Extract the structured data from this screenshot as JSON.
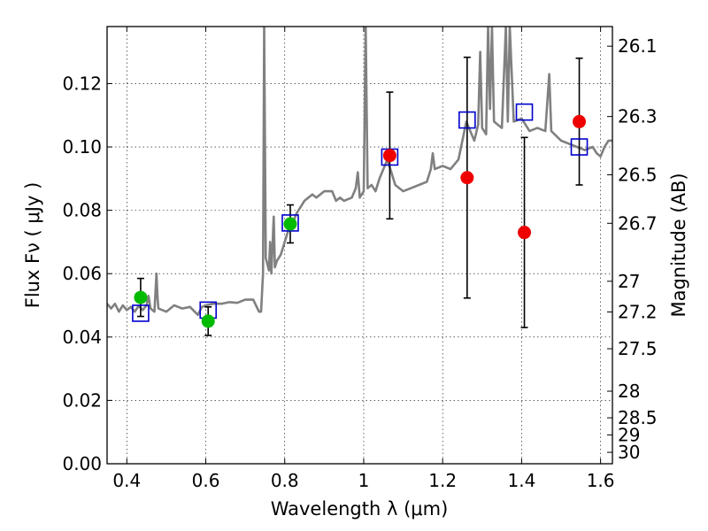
{
  "chart_data": {
    "type": "scatter",
    "title": "",
    "xlabel": "Wavelength  λ (μm)",
    "ylabel": "Flux  Fν  ( μJy )",
    "y2label": "Magnitude (AB)",
    "xlim": [
      0.35,
      1.63
    ],
    "ylim": [
      0.0,
      0.138
    ],
    "x_ticks": [
      0.4,
      0.6,
      0.8,
      1.0,
      1.2,
      1.4,
      1.6
    ],
    "x_tick_labels": [
      "0.4",
      "0.6",
      "0.8",
      "1",
      "1.2",
      "1.4",
      "1.6"
    ],
    "y_ticks": [
      0.0,
      0.02,
      0.04,
      0.06,
      0.08,
      0.1,
      0.12
    ],
    "y_tick_labels": [
      "0.00",
      "0.02",
      "0.04",
      "0.06",
      "0.08",
      "0.10",
      "0.12"
    ],
    "right_ticks": [
      {
        "label": "26.1",
        "flux": 0.1318
      },
      {
        "label": "26.3",
        "flux": 0.1096
      },
      {
        "label": "26.5",
        "flux": 0.0912
      },
      {
        "label": "26.7",
        "flux": 0.0759
      },
      {
        "label": "27",
        "flux": 0.0576
      },
      {
        "label": "27.2",
        "flux": 0.0479
      },
      {
        "label": "27.5",
        "flux": 0.0363
      },
      {
        "label": "28",
        "flux": 0.0229
      },
      {
        "label": "28.5",
        "flux": 0.0145
      },
      {
        "label": "29",
        "flux": 0.0091
      },
      {
        "label": "30",
        "flux": 0.0036
      }
    ],
    "grid": true,
    "colors": {
      "sed": "#808080",
      "green": "#00bb00",
      "red": "#ee0000",
      "model": "#0000cc"
    },
    "series": [
      {
        "kind": "green-points",
        "points": [
          {
            "x": 0.435,
            "y": 0.0525,
            "err": 0.006
          },
          {
            "x": 0.606,
            "y": 0.045,
            "err": 0.0045
          },
          {
            "x": 0.814,
            "y": 0.0757,
            "err": 0.006
          }
        ]
      },
      {
        "kind": "red-points",
        "points": [
          {
            "x": 1.066,
            "y": 0.0973,
            "err": 0.02
          },
          {
            "x": 1.262,
            "y": 0.0903,
            "err": 0.038
          },
          {
            "x": 1.407,
            "y": 0.073,
            "err": 0.03
          },
          {
            "x": 1.546,
            "y": 0.108,
            "err": 0.02
          }
        ]
      },
      {
        "kind": "model-squares",
        "points": [
          {
            "x": 0.435,
            "y": 0.0475
          },
          {
            "x": 0.606,
            "y": 0.0485
          },
          {
            "x": 0.814,
            "y": 0.076
          },
          {
            "x": 1.066,
            "y": 0.0968
          },
          {
            "x": 1.262,
            "y": 0.1085
          },
          {
            "x": 1.407,
            "y": 0.111
          },
          {
            "x": 1.546,
            "y": 0.1
          }
        ]
      },
      {
        "kind": "sed-curve",
        "points": [
          [
            0.35,
            0.0505
          ],
          [
            0.36,
            0.049
          ],
          [
            0.37,
            0.0505
          ],
          [
            0.38,
            0.048
          ],
          [
            0.39,
            0.05
          ],
          [
            0.4,
            0.0485
          ],
          [
            0.41,
            0.0495
          ],
          [
            0.42,
            0.048
          ],
          [
            0.43,
            0.0498
          ],
          [
            0.44,
            0.0485
          ],
          [
            0.45,
            0.05
          ],
          [
            0.455,
            0.053
          ],
          [
            0.46,
            0.049
          ],
          [
            0.47,
            0.048
          ],
          [
            0.475,
            0.06
          ],
          [
            0.478,
            0.052
          ],
          [
            0.48,
            0.049
          ],
          [
            0.5,
            0.048
          ],
          [
            0.52,
            0.05
          ],
          [
            0.54,
            0.049
          ],
          [
            0.56,
            0.0495
          ],
          [
            0.58,
            0.047
          ],
          [
            0.59,
            0.0495
          ],
          [
            0.6,
            0.05
          ],
          [
            0.62,
            0.0505
          ],
          [
            0.64,
            0.0505
          ],
          [
            0.66,
            0.051
          ],
          [
            0.68,
            0.0508
          ],
          [
            0.7,
            0.0518
          ],
          [
            0.72,
            0.0518
          ],
          [
            0.735,
            0.048
          ],
          [
            0.74,
            0.048
          ],
          [
            0.745,
            0.06
          ],
          [
            0.748,
            0.138
          ],
          [
            0.752,
            0.065
          ],
          [
            0.76,
            0.061
          ],
          [
            0.763,
            0.07
          ],
          [
            0.766,
            0.06
          ],
          [
            0.772,
            0.078
          ],
          [
            0.775,
            0.062
          ],
          [
            0.78,
            0.064
          ],
          [
            0.79,
            0.066
          ],
          [
            0.8,
            0.07
          ],
          [
            0.81,
            0.074
          ],
          [
            0.82,
            0.076
          ],
          [
            0.83,
            0.079
          ],
          [
            0.85,
            0.083
          ],
          [
            0.87,
            0.085
          ],
          [
            0.88,
            0.084
          ],
          [
            0.9,
            0.086
          ],
          [
            0.92,
            0.086
          ],
          [
            0.93,
            0.083
          ],
          [
            0.94,
            0.084
          ],
          [
            0.95,
            0.083
          ],
          [
            0.97,
            0.084
          ],
          [
            0.98,
            0.087
          ],
          [
            0.985,
            0.092
          ],
          [
            0.99,
            0.084
          ],
          [
            1.0,
            0.086
          ],
          [
            1.005,
            0.138
          ],
          [
            1.01,
            0.087
          ],
          [
            1.02,
            0.088
          ],
          [
            1.03,
            0.086
          ],
          [
            1.04,
            0.09
          ],
          [
            1.06,
            0.096
          ],
          [
            1.07,
            0.092
          ],
          [
            1.08,
            0.088
          ],
          [
            1.1,
            0.086
          ],
          [
            1.12,
            0.087
          ],
          [
            1.14,
            0.088
          ],
          [
            1.16,
            0.089
          ],
          [
            1.17,
            0.093
          ],
          [
            1.175,
            0.098
          ],
          [
            1.18,
            0.093
          ],
          [
            1.2,
            0.094
          ],
          [
            1.22,
            0.093
          ],
          [
            1.24,
            0.096
          ],
          [
            1.25,
            0.102
          ],
          [
            1.26,
            0.108
          ],
          [
            1.27,
            0.105
          ],
          [
            1.28,
            0.102
          ],
          [
            1.29,
            0.107
          ],
          [
            1.295,
            0.13
          ],
          [
            1.3,
            0.106
          ],
          [
            1.31,
            0.104
          ],
          [
            1.315,
            0.138
          ],
          [
            1.32,
            0.112
          ],
          [
            1.325,
            0.138
          ],
          [
            1.33,
            0.108
          ],
          [
            1.35,
            0.106
          ],
          [
            1.36,
            0.138
          ],
          [
            1.365,
            0.108
          ],
          [
            1.37,
            0.138
          ],
          [
            1.38,
            0.108
          ],
          [
            1.4,
            0.109
          ],
          [
            1.42,
            0.105
          ],
          [
            1.44,
            0.106
          ],
          [
            1.46,
            0.105
          ],
          [
            1.47,
            0.123
          ],
          [
            1.475,
            0.105
          ],
          [
            1.5,
            0.102
          ],
          [
            1.52,
            0.101
          ],
          [
            1.54,
            0.1
          ],
          [
            1.56,
            0.099
          ],
          [
            1.58,
            0.1
          ],
          [
            1.59,
            0.098
          ],
          [
            1.6,
            0.097
          ],
          [
            1.61,
            0.1
          ],
          [
            1.62,
            0.102
          ],
          [
            1.63,
            0.102
          ]
        ]
      }
    ]
  }
}
